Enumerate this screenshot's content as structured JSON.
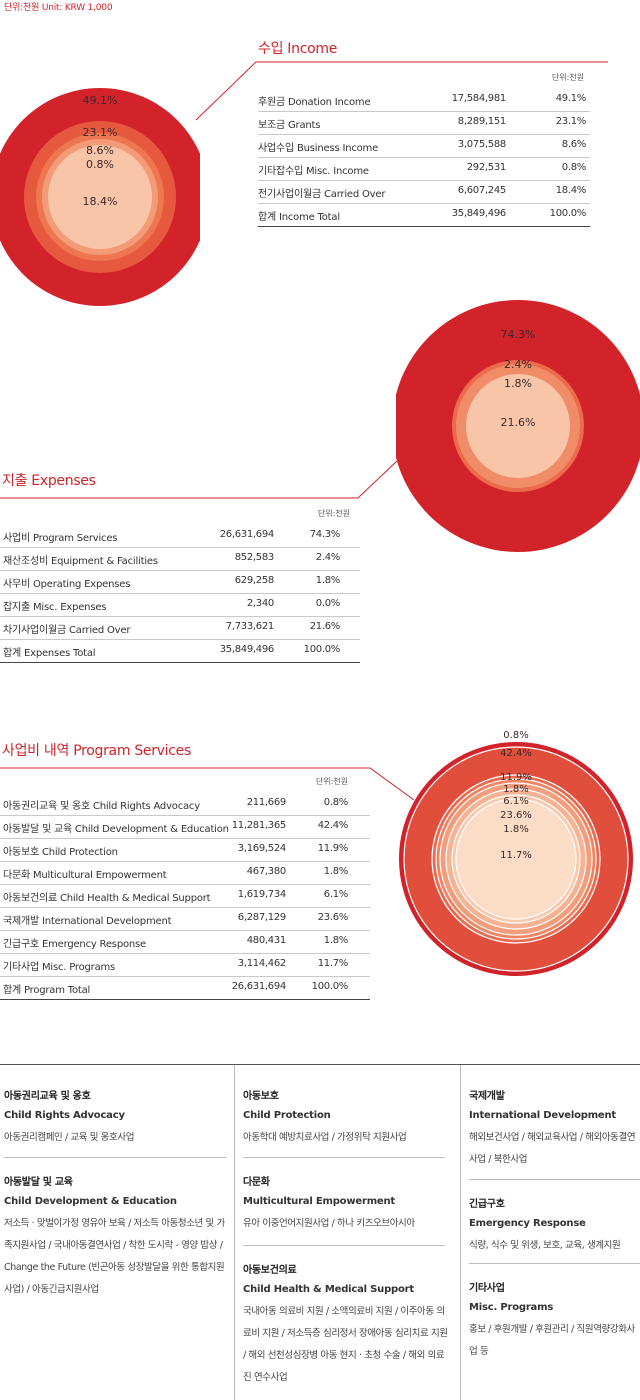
{
  "unit_top": "단위:천원  Unit: KRW 1,000",
  "income": {
    "title": "수입  Income",
    "unit": "단위:천원",
    "rows": [
      {
        "label": "후원금  Donation Income",
        "value": "17,584,981",
        "pct": "49.1%"
      },
      {
        "label": "보조금  Grants",
        "value": "8,289,151",
        "pct": "23.1%"
      },
      {
        "label": "사업수입  Business Income",
        "value": "3,075,588",
        "pct": "8.6%"
      },
      {
        "label": "기타잡수입  Misc. Income",
        "value": "292,531",
        "pct": "0.8%"
      },
      {
        "label": "전기사업이월금  Carried Over",
        "value": "6,607,245",
        "pct": "18.4%"
      },
      {
        "label": "합계  Income Total",
        "value": "35,849,496",
        "pct": "100.0%"
      }
    ]
  },
  "expenses": {
    "title": "지출 Expenses",
    "unit": "단위:천원",
    "rows": [
      {
        "label": "사업비  Program Services",
        "value": "26,631,694",
        "pct": "74.3%"
      },
      {
        "label": "재산조성비  Equipment & Facilities",
        "value": "852,583",
        "pct": "2.4%"
      },
      {
        "label": "사무비  Operating Expenses",
        "value": "629,258",
        "pct": "1.8%"
      },
      {
        "label": "잡지출  Misc. Expenses",
        "value": "2,340",
        "pct": "0.0%"
      },
      {
        "label": "차기사업이월금  Carried Over",
        "value": "7,733,621",
        "pct": "21.6%"
      },
      {
        "label": "합계  Expenses Total",
        "value": "35,849,496",
        "pct": "100.0%"
      }
    ]
  },
  "program": {
    "title": "사업비 내역 Program Services",
    "unit": "단위:천원",
    "rows": [
      {
        "label": "아동권리교육 및 옹호  Child Rights Advocacy",
        "value": "211,669",
        "pct": "0.8%"
      },
      {
        "label": "아동발달 및 교육  Child Development & Education",
        "value": "11,281,365",
        "pct": "42.4%"
      },
      {
        "label": "아동보호  Child Protection",
        "value": "3,169,524",
        "pct": "11.9%"
      },
      {
        "label": "다문화  Multicultural Empowerment",
        "value": "467,380",
        "pct": "1.8%"
      },
      {
        "label": "아동보건의료  Child Health & Medical Support",
        "value": "1,619,734",
        "pct": "6.1%"
      },
      {
        "label": "국제개발  International Development",
        "value": "6,287,129",
        "pct": "23.6%"
      },
      {
        "label": "긴급구호  Emergency Response",
        "value": "480,431",
        "pct": "1.8%"
      },
      {
        "label": "기타사업  Misc. Programs",
        "value": "3,114,462",
        "pct": "11.7%"
      },
      {
        "label": "합계  Program Total",
        "value": "26,631,694",
        "pct": "100.0%"
      }
    ]
  },
  "chart_data": [
    {
      "type": "pie",
      "title": "수입  Income",
      "categories": [
        "후원금  Donation Income",
        "보조금  Grants",
        "사업수입  Business Income",
        "기타잡수입  Misc. Income",
        "전기사업이월금  Carried Over"
      ],
      "values": [
        49.1,
        23.1,
        8.6,
        0.8,
        18.4
      ],
      "labels": [
        "49.1%",
        "23.1%",
        "8.6%",
        "0.8%",
        "18.4%"
      ],
      "colors": [
        "#d2232a",
        "#e7593f",
        "#ee7752",
        "#f39a76",
        "#f8c5a8"
      ]
    },
    {
      "type": "pie",
      "title": "지출 Expenses",
      "categories": [
        "사업비  Program Services",
        "재산조성비  Equipment & Facilities",
        "사무비  Operating Expenses",
        "잡지출  Misc. Expenses",
        "차기사업이월금  Carried Over"
      ],
      "values": [
        74.3,
        2.4,
        1.8,
        0.0,
        21.6
      ],
      "labels": [
        "74.3%",
        "2.4%",
        "1.8%",
        "",
        "21.6%"
      ],
      "colors": [
        "#d2232a",
        "#ec6b4c",
        "#f08c68",
        "#f08c68",
        "#f8c5a8"
      ]
    },
    {
      "type": "pie",
      "title": "사업비 내역 Program Services",
      "categories": [
        "아동권리교육 및 옹호",
        "아동발달 및 교육",
        "아동보호",
        "다문화",
        "아동보건의료",
        "국제개발",
        "긴급구호",
        "기타사업"
      ],
      "values": [
        0.8,
        42.4,
        11.9,
        1.8,
        6.1,
        23.6,
        1.8,
        11.7
      ],
      "labels": [
        "0.8%",
        "42.4%",
        "11.9%",
        "1.8%",
        "6.1%",
        "23.6%",
        "1.8%",
        "11.7%"
      ],
      "colors": [
        "#d2232a",
        "#e24e3c",
        "#ea6a4f",
        "#ef8463",
        "#f39d7c",
        "#f6b393",
        "#f9c9ad",
        "#fbdcc6"
      ]
    }
  ],
  "bottom": {
    "col1": [
      {
        "ko": "아동권리교육 및 옹호",
        "en": "Child Rights Advocacy",
        "desc": "아동권리캠페인 / 교육 및 옹호사업"
      },
      {
        "ko": "아동발달 및 교육",
        "en": "Child Development & Education",
        "desc": "저소득 · 맞벌이가정 영유아 보육 / 저소득 아동청소년 및 가족지원사업 / 국내아동결연사업 / 착한 도시락 - 영양 밥상 / Change the Future (빈곤아동 성장발달을 위한 통합지원 사업) / 아동긴급지원사업"
      }
    ],
    "col2": [
      {
        "ko": "아동보호",
        "en": "Child Protection",
        "desc": "아동학대 예방치료사업 / 가정위탁 지원사업"
      },
      {
        "ko": "다문화",
        "en": "Multicultural Empowerment",
        "desc": "유아 이중언어지원사업 / 하나 키즈오브아시아"
      },
      {
        "ko": "아동보건의료",
        "en": "Child Health & Medical Support",
        "desc": "국내아동 의료비 지원 / 소액의료비 지원 / 이주아동 의료비 지원 / 저소득층 심리정서 장애아동 심리치료 지원 / 해외 선천성심장병 아동 현지 · 초청 수술 / 해외 의료진 연수사업"
      }
    ],
    "col3": [
      {
        "ko": "국제개발",
        "en": "International Development",
        "desc": "해외보건사업 / 해외교육사업 / 해외아동결연사업 / 북한사업"
      },
      {
        "ko": "긴급구호",
        "en": "Emergency Response",
        "desc": "식량, 식수 및 위생, 보호, 교육, 생계지원"
      },
      {
        "ko": "기타사업",
        "en": "Misc. Programs",
        "desc": "홍보 / 후원개발 / 후원관리 / 직원역량강화사업 등"
      }
    ]
  }
}
